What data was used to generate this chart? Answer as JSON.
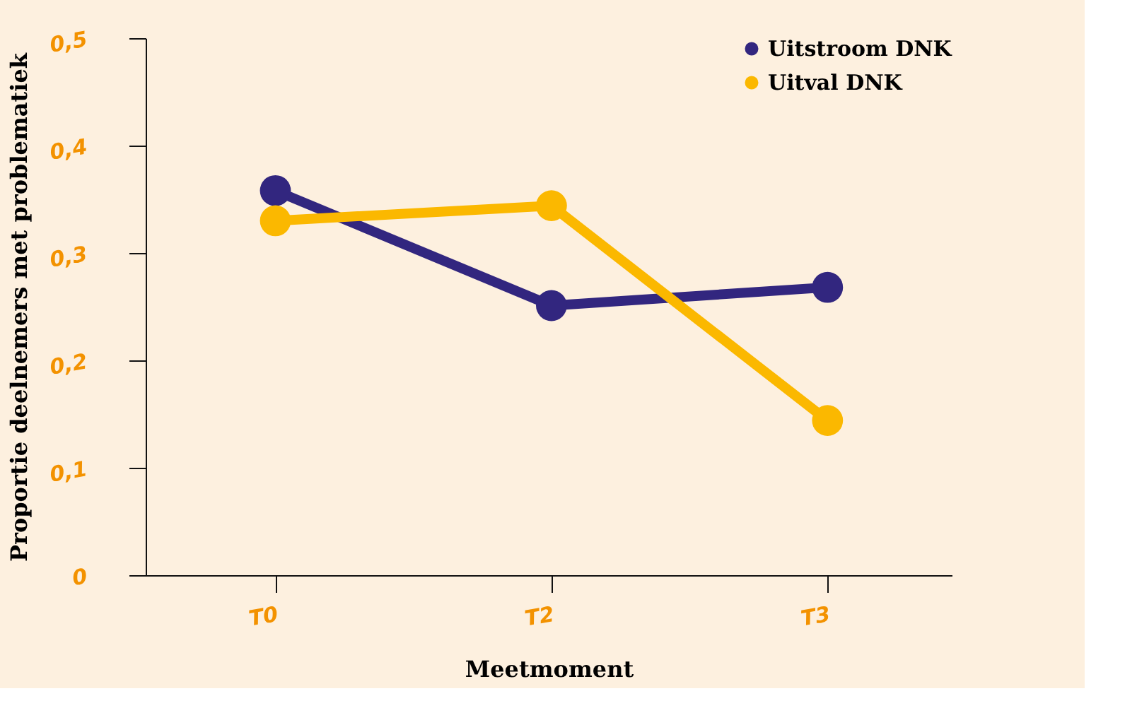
{
  "chart_data": {
    "type": "line",
    "xlabel": "Meetmoment",
    "ylabel": "Proportie deelnemers met problematiek",
    "categories": [
      "T0",
      "T2",
      "T3"
    ],
    "series": [
      {
        "name": "Uitstroom DNK",
        "color": "#32267f",
        "values": [
          0.358,
          0.251,
          0.268
        ]
      },
      {
        "name": "Uitval DNK",
        "color": "#fbb800",
        "values": [
          0.33,
          0.344,
          0.144
        ]
      }
    ],
    "ylim": [
      0,
      0.5
    ],
    "yticks": [
      {
        "value": 0,
        "label": "0"
      },
      {
        "value": 0.1,
        "label": "0,1"
      },
      {
        "value": 0.2,
        "label": "0,2"
      },
      {
        "value": 0.3,
        "label": "0,3"
      },
      {
        "value": 0.4,
        "label": "0,4"
      },
      {
        "value": 0.5,
        "label": "0,5"
      }
    ],
    "grid": false,
    "legend": "top right",
    "marker": "circle",
    "line_style": "solid"
  }
}
